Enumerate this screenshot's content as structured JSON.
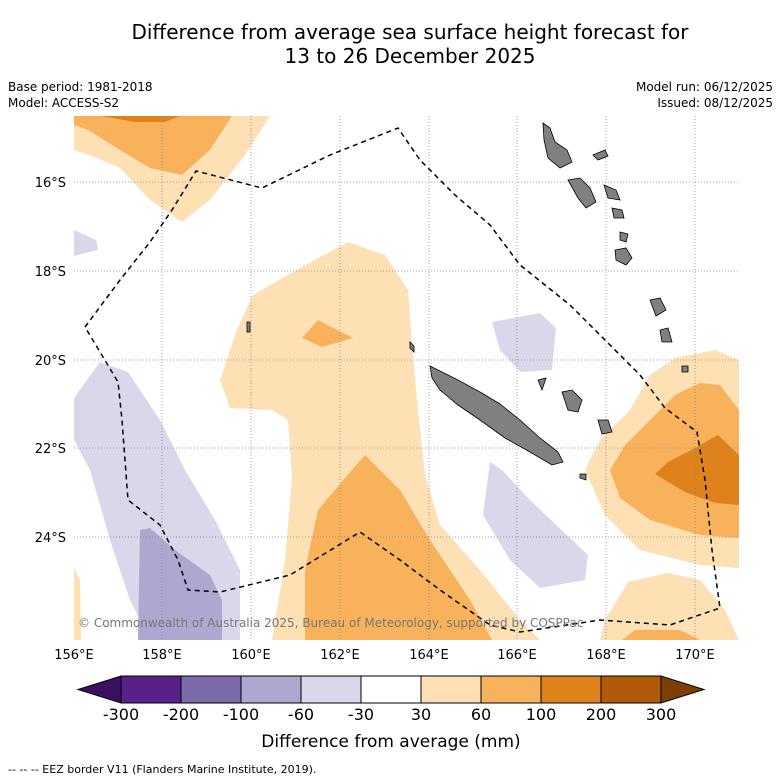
{
  "title": {
    "line1": "Difference from average sea surface height forecast for",
    "line2": "13 to 26 December 2025"
  },
  "meta": {
    "base_period": "Base period: 1981-2018",
    "model": "Model: ACCESS-S2",
    "model_run": "Model run: 06/12/2025",
    "issued": "Issued: 08/12/2025"
  },
  "copyright": "© Commonwealth of Australia 2025, Bureau of Meteorology, supported by COSPPac",
  "axes": {
    "lon_labels": [
      "156°E",
      "158°E",
      "160°E",
      "162°E",
      "164°E",
      "166°E",
      "168°E",
      "170°E"
    ],
    "lat_labels": [
      "16°S",
      "18°S",
      "20°S",
      "22°S",
      "24°S"
    ]
  },
  "colorbar": {
    "tick_labels": [
      "-300",
      "-200",
      "-100",
      "-60",
      "-30",
      "30",
      "60",
      "100",
      "200",
      "300"
    ],
    "title": "Difference from average (mm)",
    "colors": [
      "#3b1060",
      "#562289",
      "#7c6aab",
      "#aea7d0",
      "#d9d8ea",
      "#ffffff",
      "#fde0b4",
      "#f9b25c",
      "#e0821c",
      "#b15a0c",
      "#7c3f08"
    ]
  },
  "legend": {
    "eez": "--  --  -- EEZ border V11 (Flanders Marine Institute, 2019)."
  }
}
